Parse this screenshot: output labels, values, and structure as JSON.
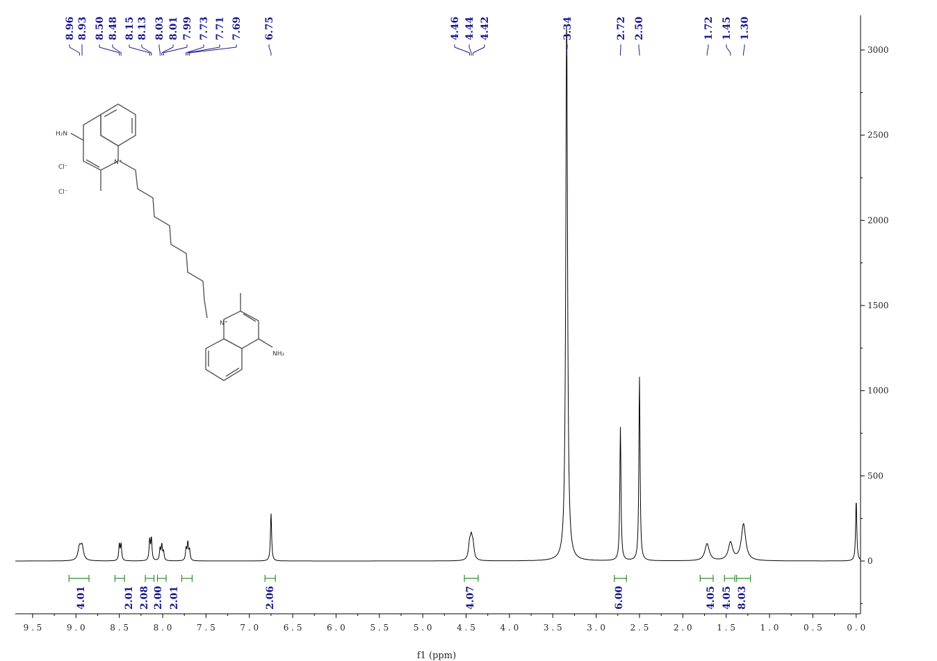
{
  "chart_data": {
    "type": "line",
    "xlabel": "f1 (ppm)",
    "xlim": [
      9.7,
      -0.05
    ],
    "ylim": [
      -320,
      3200
    ],
    "x_ticks": [
      "9.5",
      "9.0",
      "8.5",
      "8.0",
      "7.5",
      "7.0",
      "6.5",
      "6.0",
      "5.5",
      "5.0",
      "4.5",
      "4.0",
      "3.5",
      "3.0",
      "2.5",
      "2.0",
      "1.5",
      "1.0",
      "0.5",
      "0.0"
    ],
    "y_ticks": [
      "3000",
      "2500",
      "2000",
      "1500",
      "1000",
      "500",
      "0"
    ],
    "peak_labels": [
      "8.96",
      "8.93",
      "8.50",
      "8.48",
      "8.15",
      "8.13",
      "8.03",
      "8.01",
      "7.99",
      "7.73",
      "7.71",
      "7.69",
      "6.75",
      "4.46",
      "4.44",
      "4.42",
      "3.34",
      "2.72",
      "2.50",
      "1.72",
      "1.45",
      "1.30"
    ],
    "peaks": [
      {
        "ppm": 8.96,
        "height": 75
      },
      {
        "ppm": 8.93,
        "height": 80
      },
      {
        "ppm": 8.5,
        "height": 95
      },
      {
        "ppm": 8.48,
        "height": 95
      },
      {
        "ppm": 8.15,
        "height": 120
      },
      {
        "ppm": 8.13,
        "height": 130
      },
      {
        "ppm": 8.03,
        "height": 70
      },
      {
        "ppm": 8.01,
        "height": 90
      },
      {
        "ppm": 7.99,
        "height": 50
      },
      {
        "ppm": 7.73,
        "height": 70
      },
      {
        "ppm": 7.71,
        "height": 105
      },
      {
        "ppm": 7.69,
        "height": 60
      },
      {
        "ppm": 6.75,
        "height": 280
      },
      {
        "ppm": 4.46,
        "height": 85
      },
      {
        "ppm": 4.44,
        "height": 110
      },
      {
        "ppm": 4.42,
        "height": 80
      },
      {
        "ppm": 3.34,
        "height": 3200
      },
      {
        "ppm": 2.72,
        "height": 785
      },
      {
        "ppm": 2.5,
        "height": 1080
      },
      {
        "ppm": 1.72,
        "height": 100
      },
      {
        "ppm": 1.45,
        "height": 105
      },
      {
        "ppm": 1.3,
        "height": 215
      },
      {
        "ppm": 0.0,
        "height": 360
      }
    ],
    "integrals": [
      {
        "from": 9.08,
        "to": 8.85,
        "label": "4.01"
      },
      {
        "from": 8.55,
        "to": 8.44,
        "label": "2.01"
      },
      {
        "from": 8.2,
        "to": 8.1,
        "label": "2.08"
      },
      {
        "from": 8.06,
        "to": 7.96,
        "label": "2.00"
      },
      {
        "from": 7.78,
        "to": 7.66,
        "label": "2.01"
      },
      {
        "from": 6.82,
        "to": 6.7,
        "label": "2.06"
      },
      {
        "from": 4.52,
        "to": 4.36,
        "label": "4.07"
      },
      {
        "from": 2.79,
        "to": 2.65,
        "label": "6.00"
      },
      {
        "from": 1.8,
        "to": 1.65,
        "label": "4.05"
      },
      {
        "from": 1.52,
        "to": 1.4,
        "label": "4.05"
      },
      {
        "from": 1.38,
        "to": 1.22,
        "label": "8.03"
      }
    ]
  },
  "molecule": {
    "labels": [
      "H₂N",
      "Cl⁻",
      "Cl⁻",
      "N⁺",
      "N⁺",
      "NH₂"
    ]
  }
}
